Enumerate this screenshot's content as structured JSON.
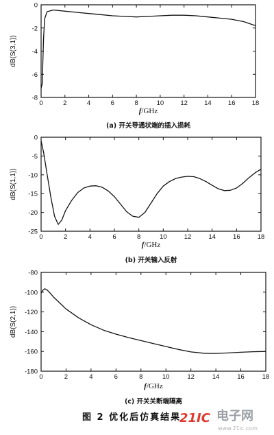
{
  "figure_caption": "图 2   优化后仿真结果",
  "watermark": {
    "brand": "21IC",
    "cn": "电子网",
    "url": "www.21ic.com"
  },
  "chart_data": [
    {
      "type": "line",
      "caption": "(a) 开关导通状端的插入损耗",
      "ylabel": "dB(S(3,1))",
      "xlabel_f": "f",
      "xlabel_unit": "/GHz",
      "xlim": [
        0,
        18
      ],
      "ylim": [
        -8,
        0
      ],
      "xticks": [
        0,
        2,
        4,
        6,
        8,
        10,
        12,
        14,
        16,
        18
      ],
      "yticks": [
        0,
        -2,
        -4,
        -6,
        -8
      ],
      "series": [
        {
          "x": [
            0,
            0.1,
            0.2,
            0.3,
            0.5,
            1,
            1.5,
            2,
            3,
            4,
            5,
            6,
            7,
            8,
            9,
            10,
            11,
            12,
            13,
            14,
            15,
            16,
            17,
            18
          ],
          "y": [
            -7.2,
            -6.8,
            -3,
            -1.2,
            -0.6,
            -0.45,
            -0.5,
            -0.55,
            -0.65,
            -0.75,
            -0.85,
            -0.95,
            -1.0,
            -1.05,
            -1.0,
            -0.95,
            -0.9,
            -0.9,
            -0.95,
            -1.05,
            -1.15,
            -1.25,
            -1.45,
            -1.8
          ]
        }
      ]
    },
    {
      "type": "line",
      "caption": "(b) 开关输入反射",
      "ylabel": "dB(S(1,1))",
      "xlabel_f": "f",
      "xlabel_unit": "/GHz",
      "xlim": [
        0,
        18
      ],
      "ylim": [
        -25,
        0
      ],
      "xticks": [
        0,
        2,
        4,
        6,
        8,
        10,
        12,
        14,
        16,
        18
      ],
      "yticks": [
        0,
        -5,
        -10,
        -15,
        -20,
        -25
      ],
      "series": [
        {
          "x": [
            0,
            0.2,
            0.5,
            0.8,
            1.1,
            1.4,
            1.7,
            2,
            2.5,
            3,
            3.5,
            4,
            4.5,
            5,
            5.5,
            6,
            6.5,
            7,
            7.5,
            8,
            8.5,
            9,
            9.5,
            10,
            10.5,
            11,
            11.5,
            12,
            12.5,
            13,
            13.5,
            14,
            14.5,
            15,
            15.5,
            16,
            16.5,
            17,
            17.5,
            18
          ],
          "y": [
            -1,
            -4,
            -10,
            -16,
            -21,
            -23.2,
            -22,
            -19.5,
            -16.8,
            -14.7,
            -13.5,
            -13,
            -12.9,
            -13.3,
            -14.3,
            -15.8,
            -17.8,
            -19.8,
            -21,
            -21.3,
            -20,
            -17.5,
            -15,
            -13,
            -11.8,
            -11,
            -10.6,
            -10.4,
            -10.5,
            -11,
            -11.8,
            -12.8,
            -13.7,
            -14.2,
            -14.1,
            -13.5,
            -12.3,
            -10.8,
            -9.5,
            -8.5
          ]
        }
      ]
    },
    {
      "type": "line",
      "caption": "(c) 开关关断端隔离",
      "ylabel": "dB(S(2,1))",
      "xlabel_f": "f",
      "xlabel_unit": "/GHz",
      "xlim": [
        0,
        18
      ],
      "ylim": [
        -180,
        -80
      ],
      "xticks": [
        0,
        2,
        4,
        6,
        8,
        10,
        12,
        14,
        16,
        18
      ],
      "yticks": [
        -80,
        -100,
        -120,
        -140,
        -160,
        -180
      ],
      "series": [
        {
          "x": [
            0,
            0.15,
            0.3,
            0.5,
            0.8,
            1,
            1.5,
            2,
            3,
            4,
            5,
            6,
            7,
            8,
            9,
            10,
            11,
            12,
            13,
            13.5,
            14,
            15,
            16,
            17,
            18
          ],
          "y": [
            -101,
            -98,
            -96.5,
            -98,
            -102,
            -105,
            -111,
            -117,
            -126,
            -133,
            -138.5,
            -142.5,
            -146,
            -149,
            -152,
            -155,
            -158,
            -160.5,
            -161.8,
            -162,
            -162,
            -161.5,
            -160.8,
            -160.3,
            -160
          ]
        }
      ]
    }
  ]
}
